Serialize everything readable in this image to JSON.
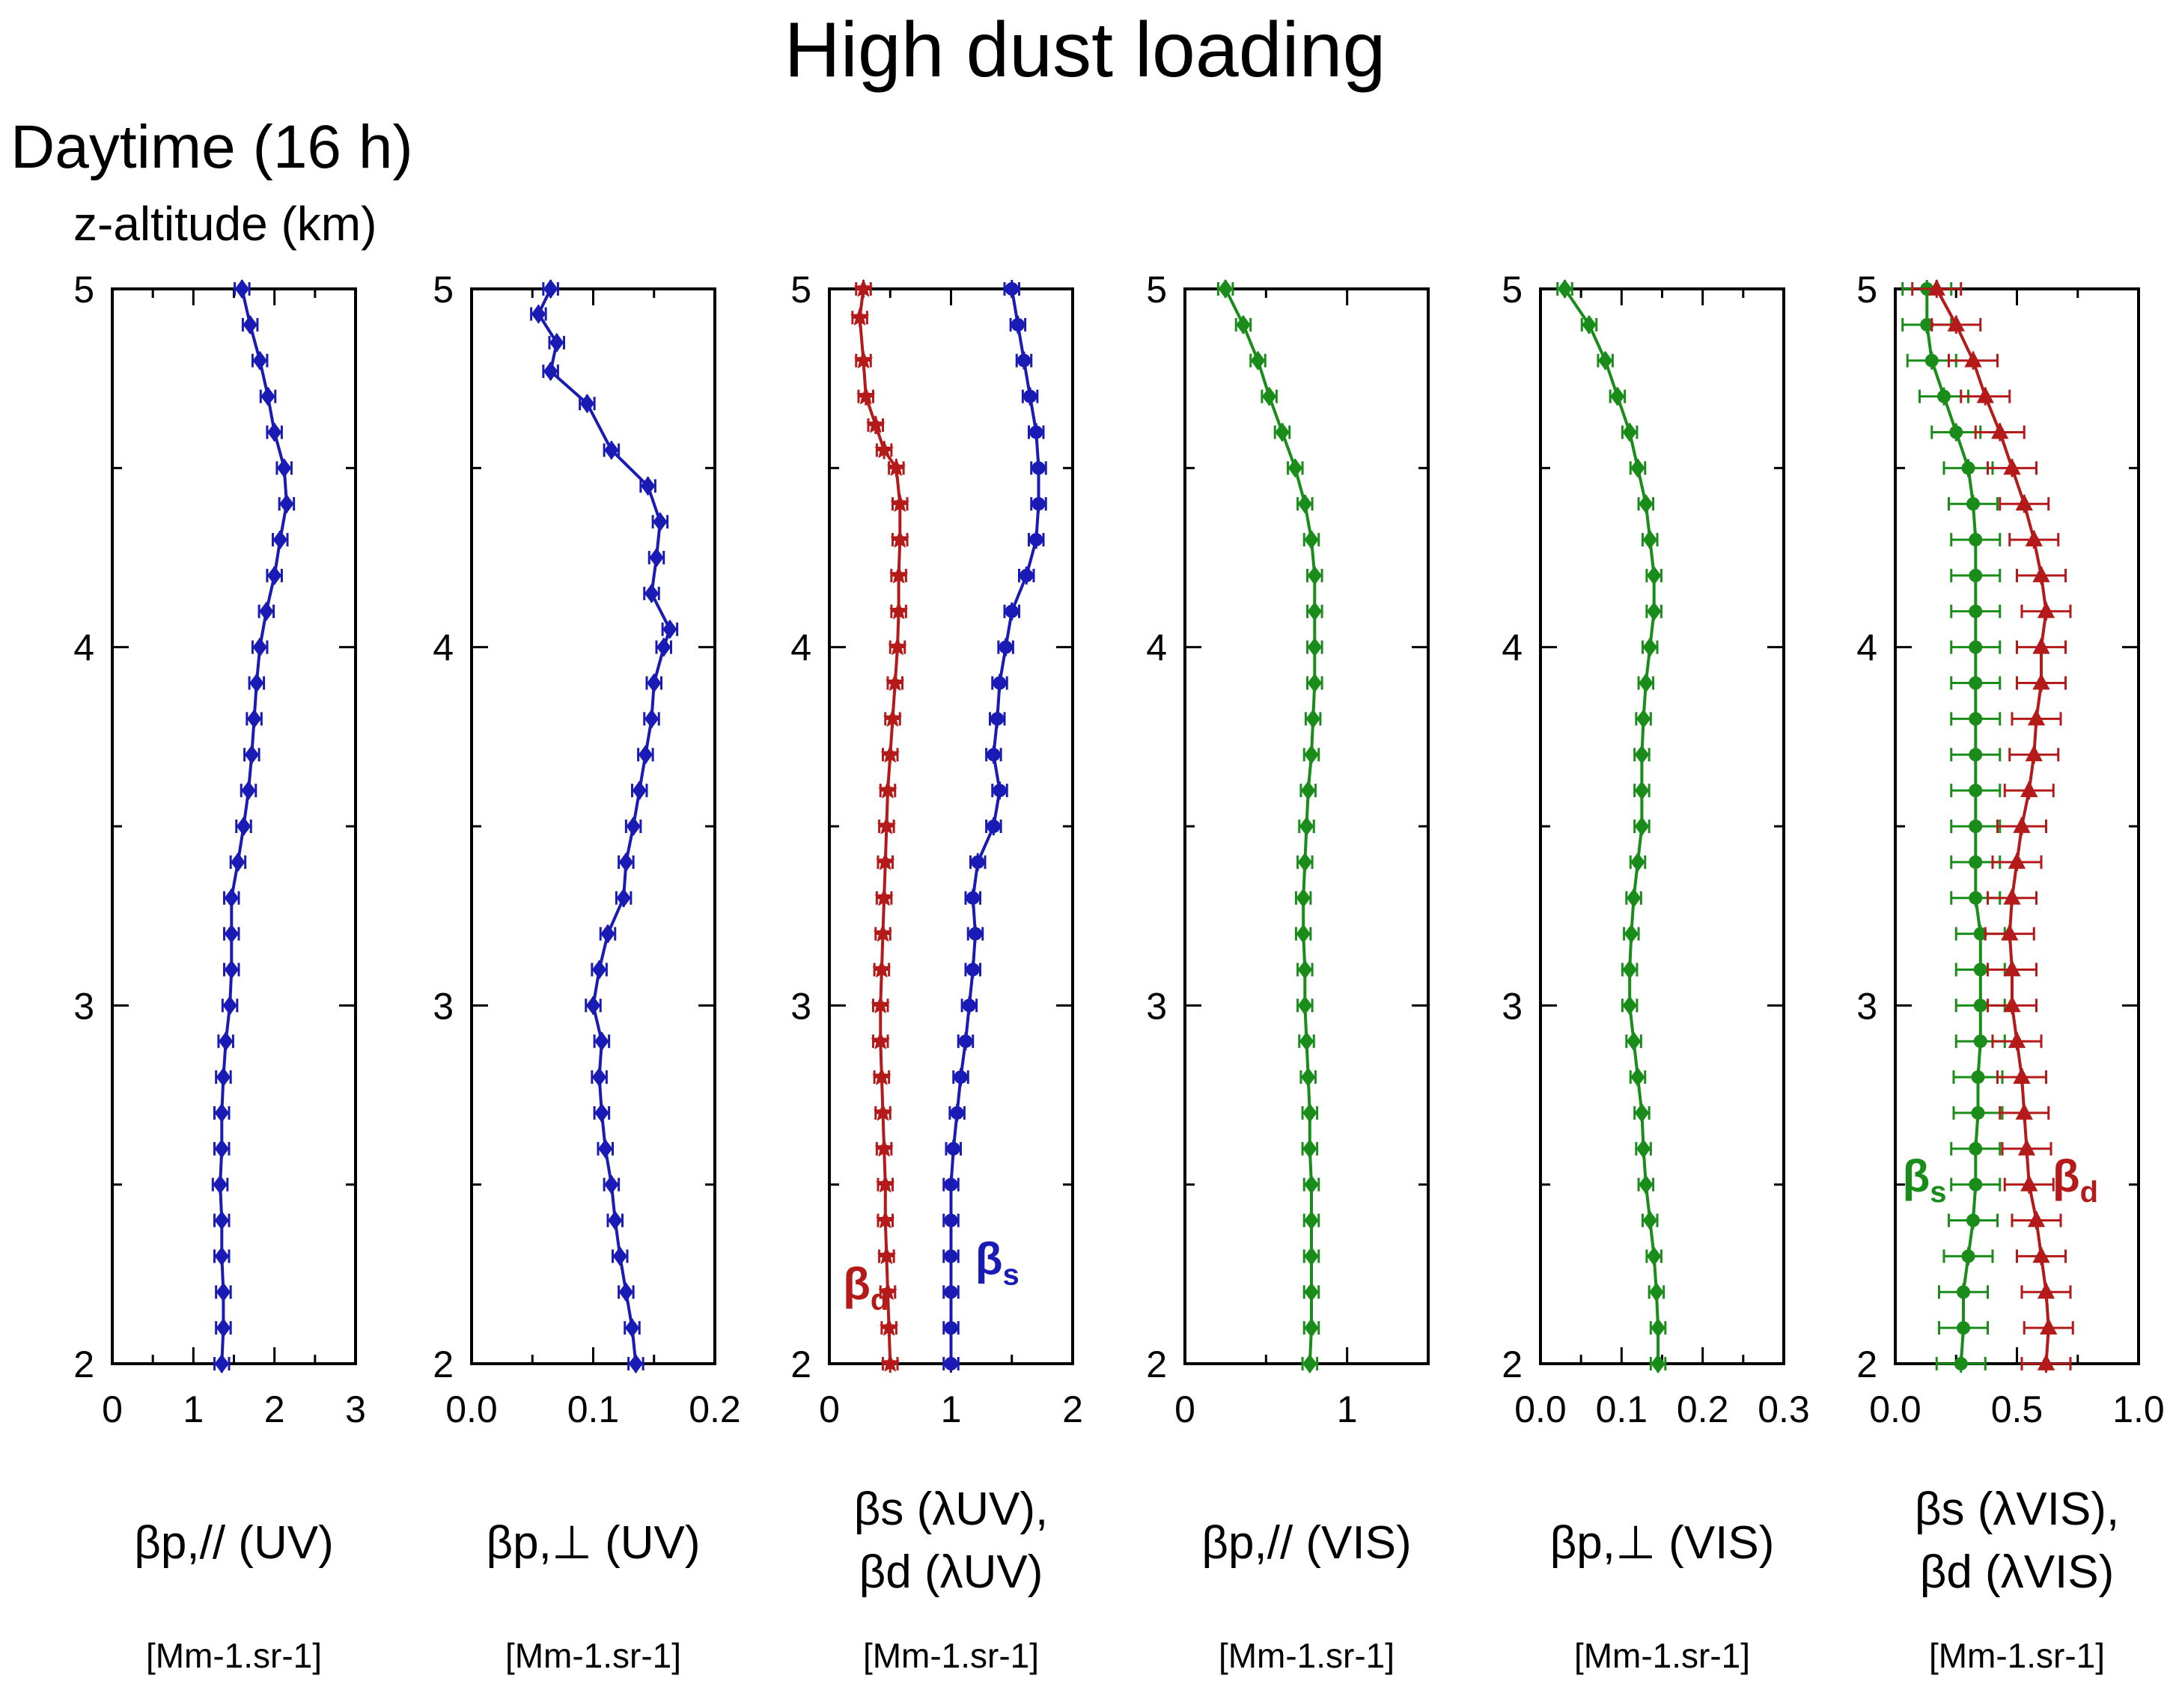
{
  "figure": {
    "title": "High dust loading",
    "subtitle": "Daytime (16 h)",
    "y_axis_label": "z-altitude (km)"
  },
  "colors": {
    "uv": "#1a1ab4",
    "vis": "#1a8c1a",
    "dust": "#b41a1a",
    "axis": "#000000"
  },
  "chart_data": [
    {
      "type": "line",
      "panel": 1,
      "xlabel": "βp,// (UV)",
      "units": "[Mm-1.sr-1]",
      "xlim": [
        0,
        3
      ],
      "xticks": [
        "0",
        "1",
        "2",
        "3"
      ],
      "ylim": [
        2,
        5
      ],
      "yticks": [
        "2",
        "3",
        "4",
        "5"
      ],
      "series": [
        {
          "name": "βp,// UV",
          "color": "uv",
          "marker": "diamond",
          "y": [
            2.0,
            2.1,
            2.2,
            2.3,
            2.4,
            2.5,
            2.6,
            2.7,
            2.8,
            2.9,
            3.0,
            3.1,
            3.2,
            3.3,
            3.4,
            3.5,
            3.6,
            3.7,
            3.8,
            3.9,
            4.0,
            4.1,
            4.2,
            4.3,
            4.4,
            4.5,
            4.6,
            4.7,
            4.8,
            4.9,
            5.0
          ],
          "x": [
            1.35,
            1.37,
            1.37,
            1.35,
            1.35,
            1.33,
            1.35,
            1.35,
            1.37,
            1.4,
            1.45,
            1.47,
            1.47,
            1.47,
            1.55,
            1.62,
            1.68,
            1.72,
            1.75,
            1.78,
            1.82,
            1.9,
            2.0,
            2.07,
            2.15,
            2.12,
            2.0,
            1.92,
            1.82,
            1.7,
            1.6
          ]
        }
      ]
    },
    {
      "type": "line",
      "panel": 2,
      "xlabel": "βp,⊥ (UV)",
      "units": "[Mm-1.sr-1]",
      "xlim": [
        0.0,
        0.2
      ],
      "xticks": [
        "0.0",
        "0.1",
        "0.2"
      ],
      "ylim": [
        2,
        5
      ],
      "yticks": [
        "2",
        "3",
        "4",
        "5"
      ],
      "series": [
        {
          "name": "βp,⊥ UV",
          "color": "uv",
          "marker": "diamond",
          "y": [
            2.0,
            2.1,
            2.2,
            2.3,
            2.4,
            2.5,
            2.6,
            2.7,
            2.8,
            2.9,
            3.0,
            3.1,
            3.2,
            3.3,
            3.4,
            3.5,
            3.6,
            3.7,
            3.8,
            3.9,
            4.0,
            4.05,
            4.15,
            4.25,
            4.35,
            4.45,
            4.55,
            4.68,
            4.77,
            4.85,
            4.93,
            5.0
          ],
          "x": [
            0.135,
            0.132,
            0.127,
            0.122,
            0.118,
            0.115,
            0.11,
            0.107,
            0.105,
            0.107,
            0.1,
            0.105,
            0.112,
            0.125,
            0.127,
            0.133,
            0.138,
            0.143,
            0.148,
            0.15,
            0.158,
            0.163,
            0.148,
            0.152,
            0.155,
            0.145,
            0.115,
            0.095,
            0.065,
            0.07,
            0.055,
            0.065
          ]
        }
      ]
    },
    {
      "type": "line",
      "panel": 3,
      "xlabel": "βs (λUV), βd (λUV)",
      "xlabel_lines": [
        "βs (λUV),",
        "βd (λUV)"
      ],
      "units": "[Mm-1.sr-1]",
      "xlim": [
        0,
        2
      ],
      "xticks": [
        "0",
        "1",
        "2"
      ],
      "ylim": [
        2,
        5
      ],
      "yticks": [
        "2",
        "3",
        "4",
        "5"
      ],
      "annotations": [
        {
          "text": "βd",
          "color": "dust",
          "x": 0.3,
          "y": 2.18
        },
        {
          "text": "βs",
          "color": "uv",
          "x": 1.38,
          "y": 2.25
        }
      ],
      "series": [
        {
          "name": "βd",
          "color": "dust",
          "marker": "star",
          "y": [
            2.0,
            2.1,
            2.2,
            2.3,
            2.4,
            2.5,
            2.6,
            2.7,
            2.8,
            2.9,
            3.0,
            3.1,
            3.2,
            3.3,
            3.4,
            3.5,
            3.6,
            3.7,
            3.8,
            3.9,
            4.0,
            4.1,
            4.2,
            4.3,
            4.4,
            4.5,
            4.55,
            4.62,
            4.7,
            4.8,
            4.92,
            5.0
          ],
          "x": [
            0.5,
            0.49,
            0.48,
            0.47,
            0.46,
            0.46,
            0.45,
            0.44,
            0.43,
            0.42,
            0.42,
            0.43,
            0.44,
            0.45,
            0.46,
            0.47,
            0.48,
            0.5,
            0.52,
            0.54,
            0.56,
            0.57,
            0.57,
            0.58,
            0.58,
            0.55,
            0.45,
            0.38,
            0.3,
            0.28,
            0.25,
            0.28
          ]
        },
        {
          "name": "βs",
          "color": "uv",
          "marker": "circle",
          "y": [
            2.0,
            2.1,
            2.2,
            2.3,
            2.4,
            2.5,
            2.6,
            2.7,
            2.8,
            2.9,
            3.0,
            3.1,
            3.2,
            3.3,
            3.4,
            3.5,
            3.6,
            3.7,
            3.8,
            3.9,
            4.0,
            4.1,
            4.2,
            4.3,
            4.4,
            4.5,
            4.6,
            4.7,
            4.8,
            4.9,
            5.0
          ],
          "x": [
            1.0,
            1.0,
            1.0,
            1.0,
            1.0,
            1.0,
            1.02,
            1.05,
            1.08,
            1.12,
            1.15,
            1.18,
            1.2,
            1.18,
            1.22,
            1.35,
            1.4,
            1.35,
            1.38,
            1.4,
            1.45,
            1.5,
            1.62,
            1.7,
            1.72,
            1.72,
            1.7,
            1.65,
            1.6,
            1.55,
            1.5
          ]
        }
      ]
    },
    {
      "type": "line",
      "panel": 4,
      "xlabel": "βp,// (VIS)",
      "units": "[Mm-1.sr-1]",
      "xlim": [
        0,
        1.5
      ],
      "xticks": [
        "0",
        "1"
      ],
      "ylim": [
        2,
        5
      ],
      "yticks": [
        "2",
        "3",
        "4",
        "5"
      ],
      "series": [
        {
          "name": "βp,// VIS",
          "color": "vis",
          "marker": "diamond",
          "y": [
            2.0,
            2.1,
            2.2,
            2.3,
            2.4,
            2.5,
            2.6,
            2.7,
            2.8,
            2.9,
            3.0,
            3.1,
            3.2,
            3.3,
            3.4,
            3.5,
            3.6,
            3.7,
            3.8,
            3.9,
            4.0,
            4.1,
            4.2,
            4.3,
            4.4,
            4.5,
            4.6,
            4.7,
            4.8,
            4.9,
            5.0
          ],
          "x": [
            0.77,
            0.78,
            0.78,
            0.78,
            0.78,
            0.78,
            0.77,
            0.77,
            0.76,
            0.75,
            0.74,
            0.74,
            0.73,
            0.73,
            0.74,
            0.75,
            0.76,
            0.78,
            0.79,
            0.8,
            0.8,
            0.8,
            0.8,
            0.78,
            0.74,
            0.68,
            0.6,
            0.52,
            0.45,
            0.36,
            0.25
          ]
        }
      ]
    },
    {
      "type": "line",
      "panel": 5,
      "xlabel": "βp,⊥ (VIS)",
      "units": "[Mm-1.sr-1]",
      "xlim": [
        0.0,
        0.3
      ],
      "xticks": [
        "0.0",
        "0.1",
        "0.2",
        "0.3"
      ],
      "ylim": [
        2,
        5
      ],
      "yticks": [
        "2",
        "3",
        "4",
        "5"
      ],
      "series": [
        {
          "name": "βp,⊥ VIS",
          "color": "vis",
          "marker": "diamond",
          "y": [
            2.0,
            2.1,
            2.2,
            2.3,
            2.4,
            2.5,
            2.6,
            2.7,
            2.8,
            2.9,
            3.0,
            3.1,
            3.2,
            3.3,
            3.4,
            3.5,
            3.6,
            3.7,
            3.8,
            3.9,
            4.0,
            4.1,
            4.2,
            4.3,
            4.4,
            4.5,
            4.6,
            4.7,
            4.8,
            4.9,
            5.0
          ],
          "x": [
            0.145,
            0.145,
            0.143,
            0.14,
            0.135,
            0.13,
            0.127,
            0.125,
            0.12,
            0.115,
            0.11,
            0.11,
            0.112,
            0.115,
            0.12,
            0.125,
            0.125,
            0.125,
            0.127,
            0.13,
            0.135,
            0.14,
            0.14,
            0.135,
            0.13,
            0.12,
            0.11,
            0.095,
            0.08,
            0.06,
            0.03
          ]
        }
      ]
    },
    {
      "type": "line",
      "panel": 6,
      "xlabel": "βs (λVIS), βd (λVIS)",
      "xlabel_lines": [
        "βs (λVIS),",
        "βd (λVIS)"
      ],
      "units": "[Mm-1.sr-1]",
      "xlim": [
        0.0,
        1.0
      ],
      "xticks": [
        "0.0",
        "0.5",
        "1.0"
      ],
      "ylim": [
        2,
        5
      ],
      "yticks": [
        "2",
        "3",
        "4",
        "5"
      ],
      "annotations": [
        {
          "text": "βs",
          "color": "vis",
          "x": 0.12,
          "y": 2.48
        },
        {
          "text": "βd",
          "color": "dust",
          "x": 0.74,
          "y": 2.48
        }
      ],
      "series": [
        {
          "name": "βs",
          "color": "vis",
          "marker": "circle",
          "xerr": 0.1,
          "y": [
            2.0,
            2.1,
            2.2,
            2.3,
            2.4,
            2.5,
            2.6,
            2.7,
            2.8,
            2.9,
            3.0,
            3.1,
            3.2,
            3.3,
            3.4,
            3.5,
            3.6,
            3.7,
            3.8,
            3.9,
            4.0,
            4.1,
            4.2,
            4.3,
            4.4,
            4.5,
            4.6,
            4.7,
            4.8,
            4.9,
            5.0
          ],
          "x": [
            0.27,
            0.28,
            0.28,
            0.3,
            0.32,
            0.33,
            0.33,
            0.34,
            0.34,
            0.35,
            0.35,
            0.35,
            0.35,
            0.33,
            0.33,
            0.33,
            0.33,
            0.33,
            0.33,
            0.33,
            0.33,
            0.33,
            0.33,
            0.33,
            0.32,
            0.3,
            0.25,
            0.2,
            0.15,
            0.13,
            0.13
          ]
        },
        {
          "name": "βd",
          "color": "dust",
          "marker": "triangle",
          "xerr": 0.1,
          "y": [
            2.0,
            2.1,
            2.2,
            2.3,
            2.4,
            2.5,
            2.6,
            2.7,
            2.8,
            2.9,
            3.0,
            3.1,
            3.2,
            3.3,
            3.4,
            3.5,
            3.6,
            3.7,
            3.8,
            3.9,
            4.0,
            4.1,
            4.2,
            4.3,
            4.4,
            4.5,
            4.6,
            4.7,
            4.8,
            4.9,
            5.0
          ],
          "x": [
            0.62,
            0.63,
            0.62,
            0.6,
            0.58,
            0.55,
            0.54,
            0.53,
            0.52,
            0.5,
            0.48,
            0.48,
            0.47,
            0.48,
            0.5,
            0.52,
            0.55,
            0.57,
            0.58,
            0.6,
            0.6,
            0.62,
            0.6,
            0.57,
            0.53,
            0.48,
            0.43,
            0.37,
            0.32,
            0.25,
            0.17
          ]
        }
      ]
    }
  ]
}
